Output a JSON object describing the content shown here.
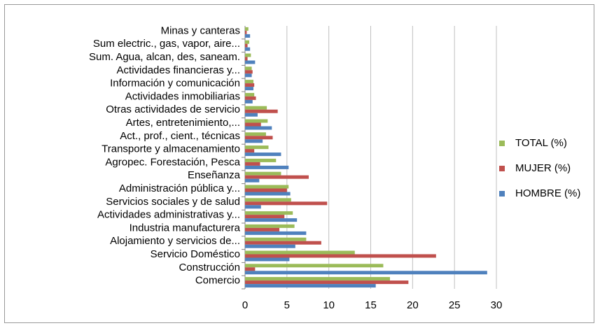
{
  "chart_data": {
    "type": "bar",
    "orientation": "horizontal",
    "categories": [
      "Comercio",
      "Construcción",
      "Servicio Doméstico",
      "Alojamiento y servicios de...",
      "Industria manufacturera",
      "Actividades administrativas y...",
      "Servicios sociales y de salud",
      "Administración pública y...",
      "Enseñanza",
      "Agropec. Forestación, Pesca",
      "Transporte y almacenamiento",
      "Act., prof., cient., técnicas",
      "Artes, entretenimiento,...",
      "Otras actividades de servicio",
      "Actividades inmobiliarias",
      "Información y comunicación",
      "Actividades financieras y...",
      "Sum. Agua, alcan, des, saneam.",
      "Sum electric., gas, vapor, aire...",
      "Minas y canteras"
    ],
    "series": [
      {
        "name": "TOTAL (%)",
        "color": "#9bbb59",
        "values": [
          17.3,
          16.5,
          13.1,
          7.3,
          5.9,
          5.7,
          5.5,
          5.2,
          4.3,
          3.7,
          2.8,
          2.5,
          2.7,
          2.6,
          1.1,
          1.0,
          0.8,
          0.7,
          0.5,
          0.4
        ]
      },
      {
        "name": "MUJER (%)",
        "color": "#c0504d",
        "values": [
          19.5,
          1.2,
          22.8,
          9.1,
          4.1,
          4.7,
          9.8,
          5.0,
          7.6,
          1.8,
          1.1,
          3.3,
          1.9,
          3.9,
          1.3,
          1.1,
          0.9,
          0.3,
          0.3,
          0.2
        ]
      },
      {
        "name": "HOMBRE (%)",
        "color": "#4f81bd",
        "values": [
          15.6,
          28.9,
          5.3,
          6.0,
          7.3,
          6.2,
          1.9,
          5.4,
          1.7,
          5.2,
          4.3,
          2.1,
          3.2,
          1.5,
          0.9,
          1.0,
          0.8,
          1.2,
          0.6,
          0.6
        ]
      }
    ],
    "xlim": [
      0,
      30
    ],
    "xticks": [
      0,
      5,
      10,
      15,
      20,
      25,
      30
    ],
    "grid": true,
    "legend": "right"
  }
}
